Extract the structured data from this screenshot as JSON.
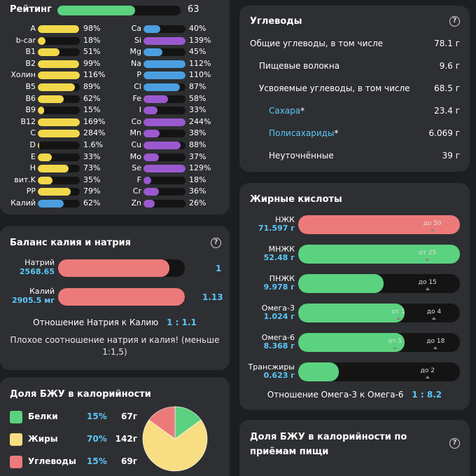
{
  "rating": {
    "label": "Рейтинг",
    "value": "63",
    "percent": 63
  },
  "vitamins": [
    {
      "name": "A",
      "pct": 98,
      "text": "98%"
    },
    {
      "name": "b-car",
      "pct": 18,
      "text": "18%"
    },
    {
      "name": "B1",
      "pct": 51,
      "text": "51%"
    },
    {
      "name": "B2",
      "pct": 99,
      "text": "99%"
    },
    {
      "name": "Холин",
      "pct": 116,
      "text": "116%"
    },
    {
      "name": "B5",
      "pct": 89,
      "text": "89%"
    },
    {
      "name": "B6",
      "pct": 62,
      "text": "62%"
    },
    {
      "name": "B9",
      "pct": 15,
      "text": "15%"
    },
    {
      "name": "B12",
      "pct": 169,
      "text": "169%"
    },
    {
      "name": "C",
      "pct": 284,
      "text": "284%"
    },
    {
      "name": "D",
      "pct": 1.6,
      "text": "1.6%"
    },
    {
      "name": "E",
      "pct": 33,
      "text": "33%"
    },
    {
      "name": "H",
      "pct": 73,
      "text": "73%"
    },
    {
      "name": "вит.K",
      "pct": 35,
      "text": "35%"
    },
    {
      "name": "PP",
      "pct": 79,
      "text": "79%"
    },
    {
      "name": "Калий",
      "pct": 62,
      "text": "62%",
      "blue": true
    }
  ],
  "minerals": [
    {
      "name": "Ca",
      "pct": 40,
      "text": "40%",
      "color": "blue"
    },
    {
      "name": "Si",
      "pct": 139,
      "text": "139%",
      "color": "purple"
    },
    {
      "name": "Mg",
      "pct": 45,
      "text": "45%",
      "color": "blue"
    },
    {
      "name": "Na",
      "pct": 112,
      "text": "112%",
      "color": "blue"
    },
    {
      "name": "P",
      "pct": 110,
      "text": "110%",
      "color": "blue"
    },
    {
      "name": "Cl",
      "pct": 87,
      "text": "87%",
      "color": "blue"
    },
    {
      "name": "Fe",
      "pct": 58,
      "text": "58%",
      "color": "purple"
    },
    {
      "name": "I",
      "pct": 33,
      "text": "33%",
      "color": "purple"
    },
    {
      "name": "Co",
      "pct": 244,
      "text": "244%",
      "color": "purple"
    },
    {
      "name": "Mn",
      "pct": 38,
      "text": "38%",
      "color": "purple"
    },
    {
      "name": "Cu",
      "pct": 88,
      "text": "88%",
      "color": "purple"
    },
    {
      "name": "Mo",
      "pct": 37,
      "text": "37%",
      "color": "purple"
    },
    {
      "name": "Se",
      "pct": 129,
      "text": "129%",
      "color": "purple"
    },
    {
      "name": "F",
      "pct": 18,
      "text": "18%",
      "color": "purple"
    },
    {
      "name": "Cr",
      "pct": 36,
      "text": "36%",
      "color": "purple"
    },
    {
      "name": "Zn",
      "pct": 26,
      "text": "26%",
      "color": "purple"
    }
  ],
  "balance": {
    "title": "Баланс калия и натрия",
    "help": "?",
    "sodium": {
      "name": "Натрий",
      "amount": "2568.65",
      "ratio": "1",
      "fill": 0.88
    },
    "potassium": {
      "name": "Калий",
      "amount": "2905.5 мг",
      "ratio": "1.13",
      "fill": 1.0
    },
    "ratio_label": "Отношение Натрия к Калию",
    "ratio_value": "1 : 1.1",
    "warning": "Плохое соотношение натрия и калия! (меньше 1:1,5)"
  },
  "bju": {
    "title": "Доля БЖУ в калорийности",
    "rows": [
      {
        "name": "Белки",
        "pct": "15%",
        "grams": "67г",
        "color": "#5bd27f",
        "share": 15
      },
      {
        "name": "Жиры",
        "pct": "70%",
        "grams": "142г",
        "color": "#f8dd83",
        "share": 70
      },
      {
        "name": "Углеводы",
        "pct": "15%",
        "grams": "69г",
        "color": "#ec7a7a",
        "share": 15
      }
    ]
  },
  "carbs": {
    "title": "Углеводы",
    "help": "?",
    "rows": [
      {
        "label": "Общие углеводы, в том числе",
        "value": "78.1 г",
        "indent": 0
      },
      {
        "label": "Пищевые волокна",
        "value": "9.6 г",
        "indent": 1
      },
      {
        "label": "Усвояемые углеводы, в том числе",
        "value": "68.5 г",
        "indent": 1
      },
      {
        "label": "Сахара",
        "mark": "*",
        "value": "23.4 г",
        "indent": 2,
        "link": true
      },
      {
        "label": "Полисахариды",
        "mark": "*",
        "value": "6.069 г",
        "indent": 2,
        "link": true
      },
      {
        "label": "Неуточнённые",
        "value": "39 г",
        "indent": 2
      }
    ]
  },
  "fats": {
    "title": "Жирные кислоты",
    "rows": [
      {
        "name": "НЖК",
        "amount": "71.597 г",
        "fill": 1.0,
        "color": "#ec7a7a",
        "ticks": [
          {
            "label": "до 50",
            "pos": 0.83
          }
        ]
      },
      {
        "name": "МНЖК",
        "amount": "52.48 г",
        "fill": 1.0,
        "color": "#5bd27f",
        "ticks": [
          {
            "label": "от 25",
            "pos": 0.8
          }
        ]
      },
      {
        "name": "ПНЖК",
        "amount": "9.978 г",
        "fill": 0.53,
        "color": "#5bd27f",
        "ticks": [
          {
            "label": "до 15",
            "pos": 0.8
          }
        ]
      },
      {
        "name": "Омега-3",
        "amount": "1.024 г",
        "fill": 0.66,
        "color": "#5bd27f",
        "ticks": [
          {
            "label": "от 1",
            "pos": 0.62
          },
          {
            "label": "до 4",
            "pos": 0.84
          }
        ]
      },
      {
        "name": "Омега-6",
        "amount": "8.368 г",
        "fill": 0.66,
        "color": "#5bd27f",
        "ticks": [
          {
            "label": "от 5",
            "pos": 0.6
          },
          {
            "label": "до 18",
            "pos": 0.85
          }
        ]
      },
      {
        "name": "Трансжиры",
        "amount": "0.623 г",
        "fill": 0.25,
        "color": "#5bd27f",
        "ticks": [
          {
            "label": "до 2",
            "pos": 0.8
          }
        ]
      }
    ],
    "ratio_label": "Отношение Омега-3 к Омега-6",
    "ratio_value": "1 : 8.2"
  },
  "meals": {
    "title": "Доля БЖУ в калорийности по приёмам пищи",
    "help": "?"
  },
  "colors": {
    "yellow": "#f1d84b",
    "blue": "#4b9fe0",
    "purple": "#9b59d0",
    "green": "#5bd27f",
    "red": "#ec7a7a",
    "cyan": "#5ac8fa"
  }
}
